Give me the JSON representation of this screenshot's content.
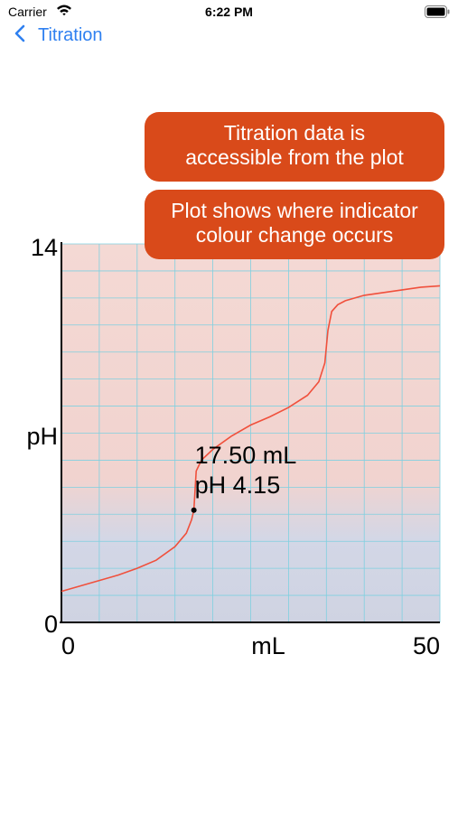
{
  "status_bar": {
    "carrier": "Carrier",
    "time": "6:22 PM"
  },
  "nav": {
    "back_label": "Titration"
  },
  "notes": [
    {
      "line1": "Titration data is",
      "line2": "accessible from the plot"
    },
    {
      "line1": "Plot shows where indicator",
      "line2": "colour change occurs"
    }
  ],
  "colors": {
    "accent": "#2f80f0",
    "note_background": "#d94a1a",
    "curve": "#f0503c",
    "acid_region": "#f3d6d0",
    "base_region": "#cfd5e3",
    "grid": "#7fd0e0"
  },
  "chart_data": {
    "type": "line",
    "x_label": "mL",
    "y_label": "pH",
    "xlim": [
      0,
      50
    ],
    "ylim": [
      0,
      14
    ],
    "x_ticks": [
      "0",
      "50"
    ],
    "y_ticks": [
      "0",
      "14"
    ],
    "indicator_transition_ph": [
      3.1,
      4.4
    ],
    "series": [
      {
        "x": [
          0,
          2.5,
          5,
          7.5,
          10,
          12.5,
          15,
          16.5,
          17.2,
          17.5,
          17.8,
          18.5,
          20,
          22.5,
          25,
          27.5,
          30,
          32.5,
          34,
          34.8,
          35.2,
          35.7,
          36.5,
          37.5,
          40,
          42.5,
          45,
          47.5,
          50
        ],
        "y": [
          1.15,
          1.35,
          1.55,
          1.75,
          2.0,
          2.3,
          2.8,
          3.3,
          3.8,
          4.15,
          5.6,
          6.0,
          6.4,
          6.9,
          7.3,
          7.6,
          7.95,
          8.4,
          8.9,
          9.6,
          10.8,
          11.5,
          11.75,
          11.9,
          12.1,
          12.2,
          12.3,
          12.4,
          12.45
        ]
      }
    ],
    "selected_point": {
      "x": 17.5,
      "y": 4.15
    },
    "annotation_lines": [
      "17.50 mL",
      "pH 4.15"
    ]
  }
}
